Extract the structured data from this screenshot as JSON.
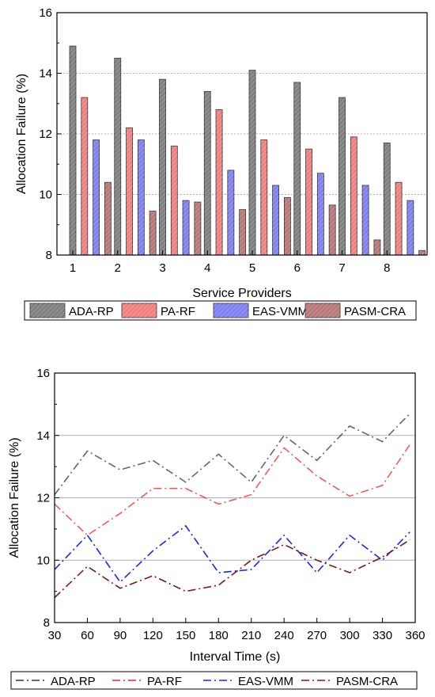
{
  "chart_data": [
    {
      "type": "bar",
      "xlabel": "Service Providers",
      "ylabel": "Allocation Failure (%)",
      "categories": [
        "1",
        "2",
        "3",
        "4",
        "5",
        "6",
        "7",
        "8"
      ],
      "ylim": [
        8,
        16
      ],
      "yticks": [
        "8",
        "10",
        "12",
        "14",
        "16"
      ],
      "grid": true,
      "legend_placement": "bottom",
      "series": [
        {
          "name": "ADA-RP",
          "color": "#808080",
          "values": [
            14.9,
            14.5,
            13.8,
            13.4,
            14.1,
            13.7,
            13.2,
            11.7
          ]
        },
        {
          "name": "PA-RF",
          "color": "#f08080",
          "values": [
            13.2,
            12.2,
            11.6,
            12.8,
            11.8,
            11.5,
            11.9,
            10.4
          ]
        },
        {
          "name": "EAS-VMM",
          "color": "#8080f0",
          "values": [
            11.8,
            11.8,
            9.8,
            10.8,
            10.3,
            10.7,
            10.3,
            9.8
          ]
        },
        {
          "name": "PASM-CRA",
          "color": "#b87878",
          "values": [
            10.4,
            9.45,
            9.75,
            9.5,
            9.9,
            9.65,
            8.5,
            8.15
          ]
        }
      ]
    },
    {
      "type": "line",
      "xlabel": "Interval Time (s)",
      "ylabel": "Allocation Failure (%)",
      "x": [
        30,
        60,
        90,
        120,
        150,
        180,
        210,
        240,
        270,
        300,
        330,
        360
      ],
      "xticks": [
        "30",
        "60",
        "90",
        "120",
        "150",
        "180",
        "210",
        "240",
        "270",
        "300",
        "330",
        "360"
      ],
      "xlim": [
        30,
        360
      ],
      "ylim": [
        8,
        16
      ],
      "yticks": [
        "8",
        "10",
        "12",
        "14",
        "16"
      ],
      "grid": true,
      "legend_placement": "bottom",
      "series": [
        {
          "name": "ADA-RP",
          "color": "#333333",
          "x": [
            30,
            60,
            90,
            120,
            150,
            180,
            210,
            240,
            270,
            300,
            330,
            355
          ],
          "values": [
            12.1,
            13.5,
            12.9,
            13.2,
            12.5,
            13.4,
            12.5,
            14.0,
            13.2,
            14.3,
            13.8,
            14.7
          ]
        },
        {
          "name": "PA-RF",
          "color": "#ee2222",
          "x": [
            30,
            60,
            90,
            120,
            150,
            180,
            210,
            240,
            270,
            300,
            330,
            355
          ],
          "values": [
            11.8,
            10.8,
            11.5,
            12.3,
            12.3,
            11.8,
            12.1,
            13.6,
            12.7,
            12.05,
            12.4,
            13.7
          ]
        },
        {
          "name": "EAS-VMM",
          "color": "#2222ee",
          "x": [
            30,
            60,
            90,
            120,
            150,
            180,
            210,
            240,
            270,
            300,
            330,
            355
          ],
          "values": [
            9.7,
            10.8,
            9.3,
            10.3,
            11.1,
            9.6,
            9.7,
            10.8,
            9.6,
            10.8,
            10.0,
            10.9
          ]
        },
        {
          "name": "PASM-CRA",
          "color": "#7a1a1a",
          "x": [
            30,
            60,
            90,
            120,
            150,
            180,
            210,
            240,
            270,
            300,
            330,
            355
          ],
          "values": [
            8.8,
            9.8,
            9.1,
            9.5,
            9.0,
            9.2,
            10.0,
            10.5,
            10.0,
            9.6,
            10.1,
            10.65
          ]
        }
      ]
    }
  ]
}
